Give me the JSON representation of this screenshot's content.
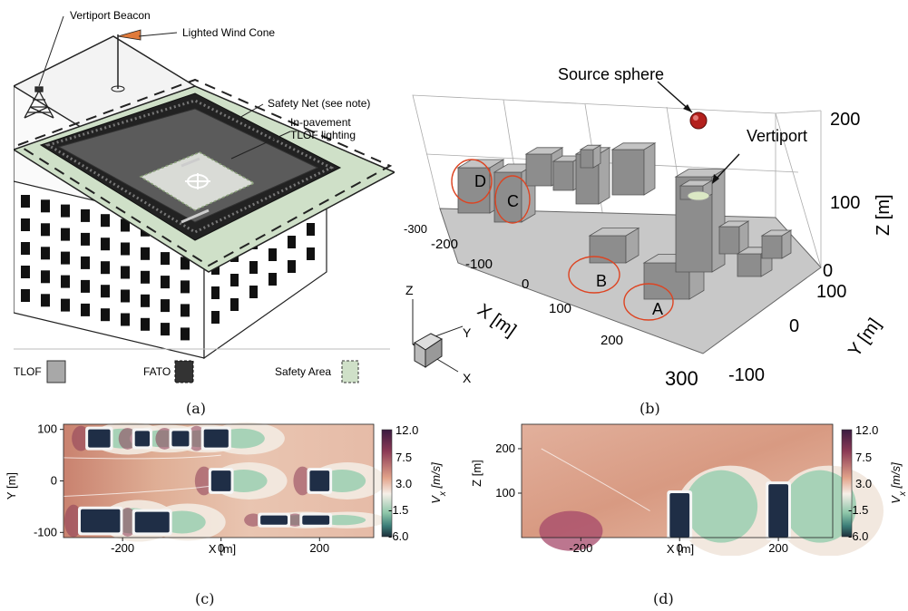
{
  "panel_a": {
    "labels": {
      "beacon": "Vertiport Beacon",
      "wind_cone": "Lighted Wind Cone",
      "safety_net": "Safety Net (see note)",
      "in_pavement_1": "In-pavement",
      "in_pavement_2": "TLOF lighting"
    },
    "legend": {
      "tlof": "TLOF",
      "fato": "FATO",
      "safety": "Safety Area"
    },
    "colors": {
      "safety_area": "#cfe0c8",
      "fato": "#2b2b2b",
      "tlof": "#a8a8a8",
      "pad": "#5a5a5a"
    }
  },
  "panel_b": {
    "source": "Source sphere",
    "vertiport": "Vertiport",
    "buildings": [
      "A",
      "B",
      "C",
      "D"
    ],
    "x_label": "X [m]",
    "y_label": "Y [m]",
    "z_label": "Z [m]",
    "x_ticks": [
      "-300",
      "-200",
      "-100",
      "0",
      "100",
      "200",
      "300"
    ],
    "y_ticks": [
      "-100",
      "0",
      "100"
    ],
    "z_ticks": [
      "0",
      "100",
      "200"
    ],
    "triad": {
      "x": "X",
      "y": "Y",
      "z": "Z"
    }
  },
  "captions": {
    "a": "(a)",
    "b": "(b)",
    "c": "(c)",
    "d": "(d)"
  },
  "chart_data": [
    {
      "type": "heatmap",
      "xlabel": "X [m]",
      "ylabel": "Y [m]",
      "xlim": [
        -320,
        310
      ],
      "ylim": [
        -110,
        110
      ],
      "x_ticks": [
        "-200",
        "0",
        "200"
      ],
      "y_ticks": [
        "-100",
        "0",
        "100"
      ],
      "colorbar": {
        "label": "V",
        "sub": "x",
        "unit": " [m/s]",
        "ticks": [
          "12.0",
          "7.5",
          "3.0",
          "-1.5",
          "-6.0"
        ]
      },
      "buildings": [
        {
          "x0": -270,
          "x1": -225,
          "y0": 65,
          "y1": 100
        },
        {
          "x0": -175,
          "x1": -145,
          "y0": 67,
          "y1": 97
        },
        {
          "x0": -100,
          "x1": -65,
          "y0": 67,
          "y1": 97
        },
        {
          "x0": -35,
          "x1": 15,
          "y0": 65,
          "y1": 100
        },
        {
          "x0": -20,
          "x1": 20,
          "y0": -20,
          "y1": 20
        },
        {
          "x0": 180,
          "x1": 220,
          "y0": -20,
          "y1": 20
        },
        {
          "x0": -285,
          "x1": -205,
          "y0": -100,
          "y1": -55
        },
        {
          "x0": -175,
          "x1": -105,
          "y0": -100,
          "y1": -60
        },
        {
          "x0": 80,
          "x1": 135,
          "y0": -85,
          "y1": -67
        },
        {
          "x0": 165,
          "x1": 220,
          "y0": -85,
          "y1": -67
        }
      ]
    },
    {
      "type": "heatmap",
      "xlabel": "X [m]",
      "ylabel": "Z [m]",
      "xlim": [
        -320,
        310
      ],
      "ylim": [
        0,
        255
      ],
      "x_ticks": [
        "-200",
        "0",
        "200"
      ],
      "y_ticks": [
        "100",
        "200"
      ],
      "colorbar": {
        "label": "V",
        "sub": "x",
        "unit": " [m/s]",
        "ticks": [
          "12.0",
          "7.5",
          "3.0",
          "-1.5",
          "-6.0"
        ]
      },
      "buildings": [
        {
          "x0": -20,
          "x1": 20,
          "z1": 100
        },
        {
          "x0": 180,
          "x1": 220,
          "z1": 120
        }
      ]
    }
  ]
}
